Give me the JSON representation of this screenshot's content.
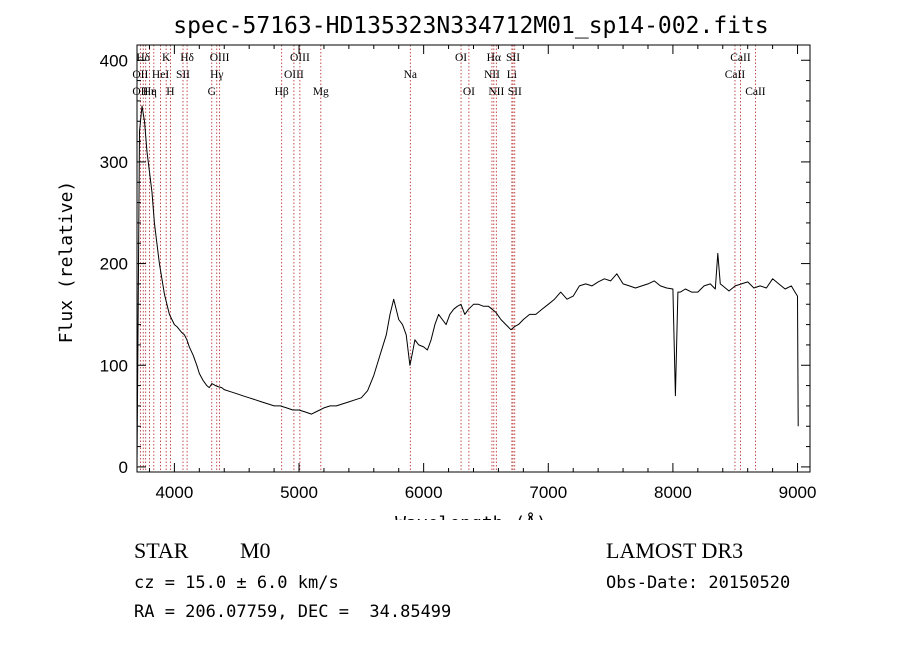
{
  "chart_data": {
    "type": "line",
    "title": "spec-57163-HD135323N334712M01_sp14-002.fits",
    "xlabel": "Wavelength (Å)",
    "ylabel": "Flux (relative)",
    "xlim": [
      3700,
      9100
    ],
    "ylim": [
      -5,
      415
    ],
    "xticks": [
      4000,
      5000,
      6000,
      7000,
      8000,
      9000
    ],
    "yticks": [
      0,
      100,
      200,
      300,
      400
    ],
    "series": [
      {
        "name": "flux",
        "x": [
          3700,
          3720,
          3740,
          3760,
          3780,
          3800,
          3820,
          3840,
          3860,
          3880,
          3900,
          3920,
          3940,
          3960,
          3980,
          4000,
          4020,
          4040,
          4060,
          4080,
          4100,
          4120,
          4150,
          4180,
          4200,
          4230,
          4260,
          4280,
          4300,
          4330,
          4350,
          4380,
          4400,
          4450,
          4500,
          4550,
          4600,
          4650,
          4700,
          4750,
          4800,
          4850,
          4900,
          4950,
          5000,
          5050,
          5100,
          5150,
          5200,
          5250,
          5300,
          5350,
          5400,
          5450,
          5500,
          5550,
          5600,
          5650,
          5700,
          5730,
          5760,
          5780,
          5800,
          5830,
          5860,
          5890,
          5910,
          5930,
          5960,
          6000,
          6030,
          6060,
          6090,
          6120,
          6150,
          6180,
          6210,
          6240,
          6270,
          6300,
          6330,
          6360,
          6400,
          6440,
          6480,
          6520,
          6550,
          6580,
          6620,
          6660,
          6700,
          6730,
          6760,
          6800,
          6850,
          6900,
          6950,
          7000,
          7050,
          7100,
          7150,
          7200,
          7250,
          7300,
          7350,
          7400,
          7450,
          7500,
          7550,
          7600,
          7650,
          7700,
          7750,
          7800,
          7850,
          7900,
          7950,
          8000,
          8020,
          8040,
          8060,
          8100,
          8150,
          8200,
          8250,
          8300,
          8340,
          8360,
          8380,
          8400,
          8450,
          8500,
          8550,
          8600,
          8650,
          8700,
          8750,
          8800,
          8850,
          8900,
          8950,
          8980,
          9000,
          9005
        ],
        "y": [
          0,
          330,
          355,
          340,
          310,
          290,
          270,
          240,
          220,
          200,
          185,
          170,
          160,
          150,
          145,
          140,
          138,
          135,
          132,
          130,
          125,
          118,
          110,
          100,
          92,
          85,
          80,
          78,
          82,
          80,
          79,
          78,
          76,
          74,
          72,
          70,
          68,
          66,
          64,
          62,
          60,
          60,
          58,
          56,
          56,
          54,
          52,
          55,
          58,
          60,
          60,
          62,
          64,
          66,
          68,
          75,
          90,
          110,
          130,
          150,
          165,
          155,
          145,
          140,
          130,
          100,
          112,
          125,
          120,
          118,
          115,
          125,
          140,
          150,
          145,
          140,
          150,
          155,
          158,
          160,
          150,
          155,
          160,
          160,
          158,
          158,
          155,
          152,
          145,
          140,
          135,
          138,
          140,
          145,
          150,
          150,
          155,
          160,
          165,
          172,
          165,
          168,
          178,
          180,
          178,
          182,
          185,
          183,
          190,
          180,
          178,
          176,
          178,
          180,
          183,
          178,
          176,
          175,
          70,
          172,
          172,
          175,
          172,
          172,
          178,
          180,
          175,
          210,
          180,
          178,
          173,
          178,
          180,
          182,
          176,
          178,
          176,
          185,
          180,
          175,
          178,
          172,
          168,
          40
        ]
      }
    ],
    "line_annotations": [
      {
        "label": "Hδ",
        "x": 3750,
        "row": 1
      },
      {
        "label": "K",
        "x": 3934,
        "row": 1
      },
      {
        "label": "Hδ",
        "x": 4102,
        "row": 1
      },
      {
        "label": "OIII",
        "x": 4363,
        "row": 1
      },
      {
        "label": "OIII",
        "x": 5007,
        "row": 1
      },
      {
        "label": "OI",
        "x": 6300,
        "row": 1
      },
      {
        "label": "Hα",
        "x": 6563,
        "row": 1
      },
      {
        "label": "SII",
        "x": 6717,
        "row": 1
      },
      {
        "label": "CaII",
        "x": 8542,
        "row": 1
      },
      {
        "label": "OII",
        "x": 3727,
        "row": 2
      },
      {
        "label": "HeI",
        "x": 3889,
        "row": 2
      },
      {
        "label": "SII",
        "x": 4069,
        "row": 2
      },
      {
        "label": "Hγ",
        "x": 4340,
        "row": 2
      },
      {
        "label": "OIII",
        "x": 4959,
        "row": 2
      },
      {
        "label": "Na",
        "x": 5893,
        "row": 2
      },
      {
        "label": "NII",
        "x": 6548,
        "row": 2
      },
      {
        "label": "Li",
        "x": 6708,
        "row": 2
      },
      {
        "label": "CaII",
        "x": 8498,
        "row": 2
      },
      {
        "label": "OII",
        "x": 3727,
        "row": 3
      },
      {
        "label": "Hε",
        "x": 3800,
        "row": 3
      },
      {
        "label": "η",
        "x": 3835,
        "row": 3
      },
      {
        "label": "H",
        "x": 3968,
        "row": 3
      },
      {
        "label": "G",
        "x": 4300,
        "row": 3
      },
      {
        "label": "Hβ",
        "x": 4861,
        "row": 3
      },
      {
        "label": "Mg",
        "x": 5175,
        "row": 3
      },
      {
        "label": "OI",
        "x": 6363,
        "row": 3
      },
      {
        "label": "NII",
        "x": 6583,
        "row": 3
      },
      {
        "label": "SII",
        "x": 6731,
        "row": 3
      },
      {
        "label": "CaII",
        "x": 8662,
        "row": 3
      }
    ],
    "line_positions": [
      3727,
      3750,
      3770,
      3800,
      3835,
      3889,
      3934,
      3968,
      4069,
      4102,
      4300,
      4340,
      4363,
      4861,
      4959,
      5007,
      5175,
      5893,
      6300,
      6363,
      6548,
      6563,
      6583,
      6708,
      6717,
      6731,
      8498,
      8542,
      8662
    ]
  },
  "info": {
    "object_class": "STAR",
    "subclass": "M0",
    "survey": "LAMOST DR3",
    "redshift_text": "cz = 15.0 ± 6.0 km/s",
    "obs_date": "Obs-Date: 20150520",
    "coords": "RA = 206.07759, DEC =  34.85499"
  }
}
